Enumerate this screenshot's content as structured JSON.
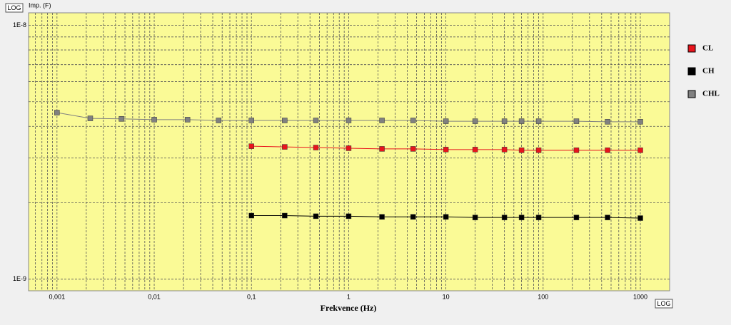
{
  "chart_data": {
    "type": "line",
    "y_label": "Imp. (F)",
    "x_label": "Frekvence (Hz)",
    "y_scale_badge": "LOG",
    "x_scale_badge": "LOG",
    "xscale": "log",
    "yscale": "log",
    "grid": true,
    "xlim": [
      0.00051,
      2000
    ],
    "ylim": [
      9e-10,
      1.12e-08
    ],
    "xticks": [
      {
        "value": 0.001,
        "label": "0,001"
      },
      {
        "value": 0.01,
        "label": "0,01"
      },
      {
        "value": 0.1,
        "label": "0,1"
      },
      1,
      10,
      100,
      1000
    ],
    "yticks": [
      {
        "value": 1e-09,
        "label": "1E-9"
      },
      {
        "value": 1e-08,
        "label": "1E-8"
      }
    ],
    "x": [
      0.001,
      0.0022,
      0.0046,
      0.01,
      0.022,
      0.046,
      0.1,
      0.22,
      0.46,
      1,
      2.2,
      4.6,
      10,
      20,
      40,
      60,
      90,
      220,
      460,
      1000
    ],
    "series": [
      {
        "name": "CL",
        "color": "#e8141c",
        "values": [
          null,
          null,
          null,
          null,
          null,
          null,
          3.34e-09,
          3.32e-09,
          3.3e-09,
          3.28e-09,
          3.26e-09,
          3.26e-09,
          3.24e-09,
          3.24e-09,
          3.24e-09,
          3.22e-09,
          3.22e-09,
          3.22e-09,
          3.22e-09,
          3.22e-09
        ]
      },
      {
        "name": "CH",
        "color": "#000000",
        "values": [
          null,
          null,
          null,
          null,
          null,
          null,
          1.78e-09,
          1.78e-09,
          1.77e-09,
          1.77e-09,
          1.76e-09,
          1.76e-09,
          1.76e-09,
          1.75e-09,
          1.75e-09,
          1.75e-09,
          1.75e-09,
          1.75e-09,
          1.75e-09,
          1.74e-09
        ]
      },
      {
        "name": "CHL",
        "color": "#808080",
        "values": [
          4.53e-09,
          4.3e-09,
          4.28e-09,
          4.25e-09,
          4.25e-09,
          4.22e-09,
          4.22e-09,
          4.22e-09,
          4.22e-09,
          4.22e-09,
          4.22e-09,
          4.22e-09,
          4.19e-09,
          4.19e-09,
          4.19e-09,
          4.19e-09,
          4.19e-09,
          4.19e-09,
          4.17e-09,
          4.17e-09
        ]
      }
    ]
  }
}
